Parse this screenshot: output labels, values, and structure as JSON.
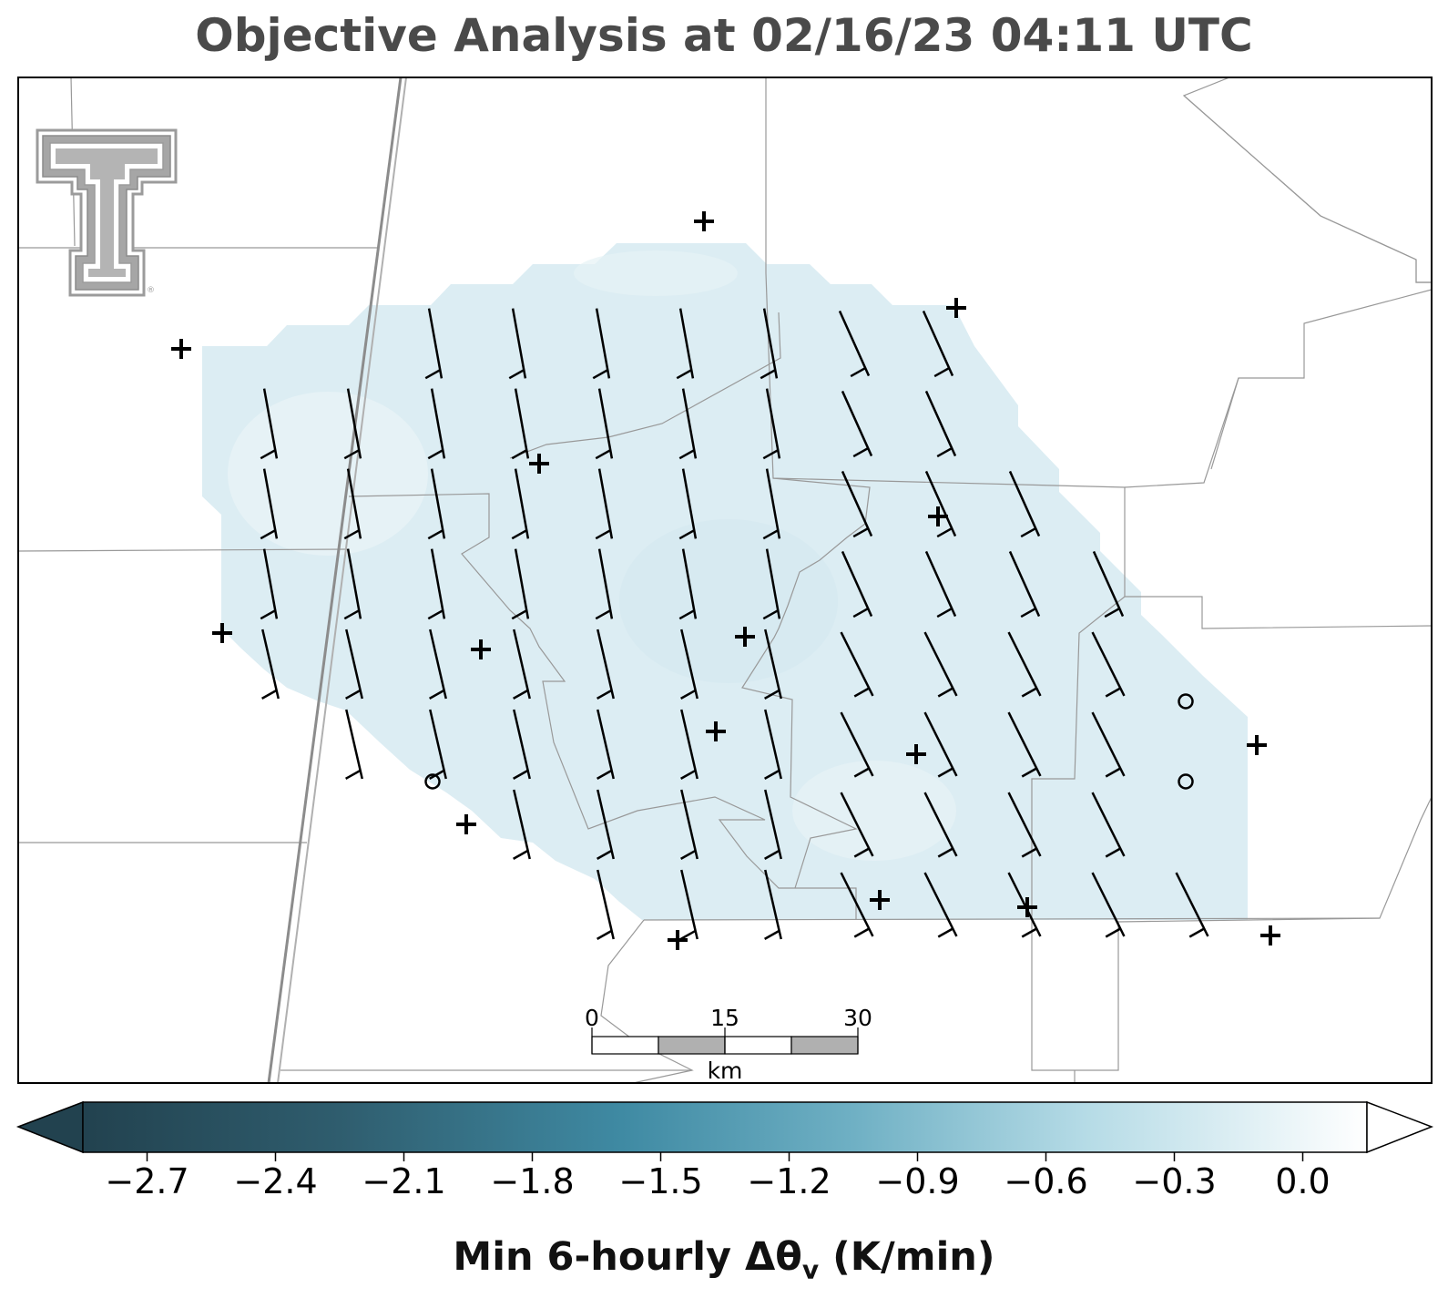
{
  "title": "Objective Analysis at 02/16/23 04:11 UTC",
  "colorbar": {
    "label_main": "Min 6-hourly Δθ",
    "label_sub": "v",
    "label_units": " (K/min)",
    "ticks": [
      "−2.7",
      "−2.4",
      "−2.1",
      "−1.8",
      "−1.5",
      "−1.2",
      "−0.9",
      "−0.6",
      "−0.3",
      "0.0"
    ],
    "vmin": -2.85,
    "vmax": 0.15,
    "extend": "both",
    "colors": [
      "#22424f",
      "#2f5d6e",
      "#3f8aa3",
      "#6fb0c4",
      "#b5dbe6",
      "#ffffff"
    ]
  },
  "analysis_field": {
    "value_range": [
      -0.6,
      -0.3
    ],
    "fill_color": "#dcedf3"
  },
  "scale_bar": {
    "ticks": [
      "0",
      "15",
      "30"
    ],
    "unit": "km"
  },
  "logo": {
    "name": "Texas Tech Double T",
    "mark": "®"
  },
  "colors": {
    "boundary": "#999999",
    "highway": "#8c8c8c",
    "barb": "#000000",
    "station": "#000000"
  }
}
